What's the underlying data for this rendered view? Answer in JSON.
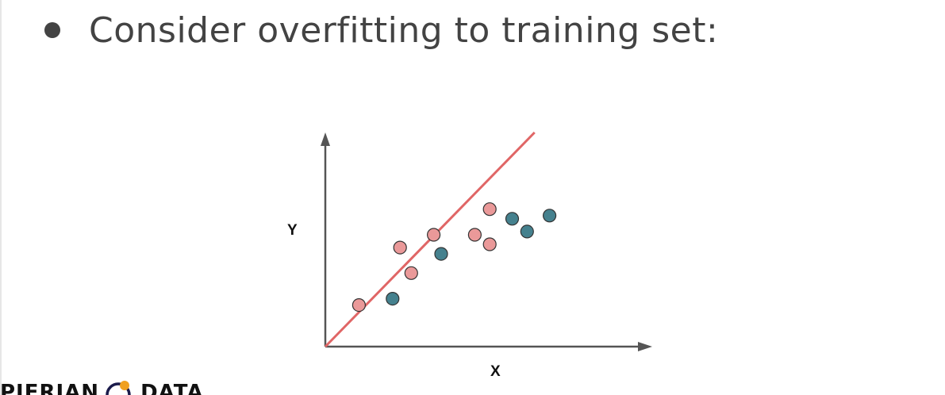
{
  "slide": {
    "bullet_text": "Consider overfitting to training set:"
  },
  "diagram": {
    "y_label": "Y",
    "x_label": "X",
    "colors": {
      "axis": "#555555",
      "fit_line": "#e06666",
      "pink_points": "#ea9999",
      "teal_points": "#45818e",
      "point_stroke": "#333333"
    },
    "pink_points": [
      {
        "x": 0.9,
        "y": 1.3
      },
      {
        "x": 2.3,
        "y": 2.3
      },
      {
        "x": 2.9,
        "y": 3.5
      },
      {
        "x": 2.0,
        "y": 3.1
      },
      {
        "x": 4.0,
        "y": 3.5
      },
      {
        "x": 4.4,
        "y": 3.2
      },
      {
        "x": 4.4,
        "y": 4.3
      }
    ],
    "teal_points": [
      {
        "x": 1.8,
        "y": 1.5
      },
      {
        "x": 3.1,
        "y": 2.9
      },
      {
        "x": 5.0,
        "y": 4.0
      },
      {
        "x": 5.4,
        "y": 3.6
      },
      {
        "x": 6.0,
        "y": 4.1
      }
    ],
    "fit_line": {
      "from": [
        0,
        0
      ],
      "to": [
        5.6,
        6.7
      ]
    }
  },
  "footer": {
    "logo_left": "PIERIAN",
    "logo_right": "DATA",
    "logo_icon": "pierian-data-logo-icon"
  }
}
